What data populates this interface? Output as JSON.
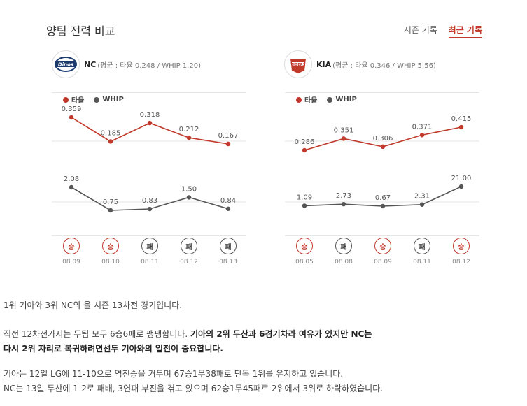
{
  "header": {
    "title": "양팀 전력 비교",
    "tabs": [
      {
        "label": "시즌 기록",
        "active": false
      },
      {
        "label": "최근 기록",
        "active": true
      }
    ]
  },
  "teams": {
    "nc": {
      "name": "NC",
      "stats": "(평균 : 타율 0.248 / WHIP 1.20)",
      "logo_text": "Dinos",
      "logo_icon": "dinos-logo-icon",
      "accent": "#1c3a6e"
    },
    "kia": {
      "name": "KIA",
      "stats": "(평균 : 타율 0.346 / WHIP 5.56)",
      "logo_text": "TIGERS",
      "logo_icon": "tigers-logo-icon",
      "accent": "#c0392b"
    }
  },
  "legend": {
    "avg_label": "타율",
    "whip_label": "WHIP",
    "avg_color": "#c0392b",
    "whip_color": "#555555"
  },
  "chart_data": [
    {
      "type": "line",
      "team": "NC",
      "categories": [
        "08.09",
        "08.10",
        "08.11",
        "08.12",
        "08.13"
      ],
      "series": [
        {
          "name": "타율",
          "values": [
            0.359,
            0.185,
            0.318,
            0.212,
            0.167
          ],
          "labels": [
            "0.359",
            "0.185",
            "0.318",
            "0.212",
            "0.167"
          ]
        },
        {
          "name": "WHIP",
          "values": [
            2.08,
            0.75,
            0.83,
            1.5,
            0.84
          ],
          "labels": [
            "2.08",
            "0.75",
            "0.83",
            "1.50",
            "0.84"
          ]
        }
      ],
      "results": [
        "승",
        "승",
        "패",
        "패",
        "패"
      ]
    },
    {
      "type": "line",
      "team": "KIA",
      "categories": [
        "08.05",
        "08.08",
        "08.09",
        "08.11",
        "08.12"
      ],
      "series": [
        {
          "name": "타율",
          "values": [
            0.286,
            0.351,
            0.306,
            0.371,
            0.415
          ],
          "labels": [
            "0.286",
            "0.351",
            "0.306",
            "0.371",
            "0.415"
          ]
        },
        {
          "name": "WHIP",
          "values": [
            1.09,
            2.73,
            0.67,
            2.31,
            21.0
          ],
          "labels": [
            "1.09",
            "2.73",
            "0.67",
            "2.31",
            "21.00"
          ]
        }
      ],
      "results": [
        "승",
        "패",
        "승",
        "패",
        "승"
      ]
    }
  ],
  "article": {
    "p1": "1위 기아와 3위 NC의 올 시즌 13차전 경기입니다.",
    "p2_normal": "직전 12차전가지는 두팀 모두 6승6패로 팽팽합니다. ",
    "p2_bold_1": "기아의 2위 두산과 6경기차라 여유가 있지만 NC는",
    "p2_bold_2": "다시 2위 자리로 복귀하려면선두 기아와의 일전이 중요합니다.",
    "p3_line1": "기아는 12일 LG에 11-10으로 역전승을 거두며 67승1무38패로 단독 1위를 유지하고 있습니다.",
    "p3_line2": "NC는 13일 두산에 1-2로 패배, 3연패 부진을 겪고 있으며 62승1무45패로 2위에서 3위로 하락하였습니다."
  }
}
